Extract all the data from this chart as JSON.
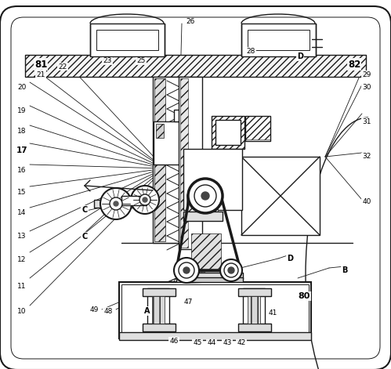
{
  "bg_color": "#ffffff",
  "lc": "#1a1a1a",
  "fig_width": 4.99,
  "fig_height": 4.71,
  "dpi": 100,
  "bold_labels": [
    "81",
    "82",
    "17",
    "80",
    "C",
    "D",
    "A",
    "B"
  ]
}
